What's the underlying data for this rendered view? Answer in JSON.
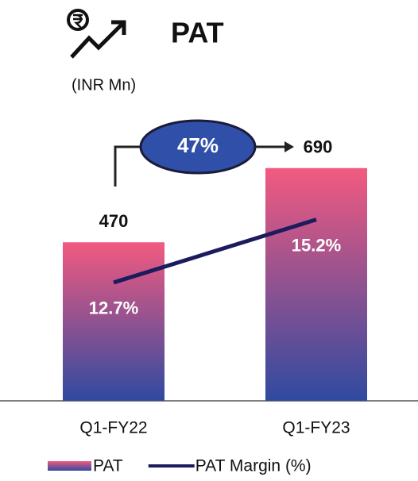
{
  "chart_data": {
    "type": "bar",
    "title": "PAT",
    "subtitle": "(INR Mn)",
    "growth_label": "47%",
    "categories": [
      "Q1-FY22",
      "Q1-FY23"
    ],
    "series": [
      {
        "name": "PAT",
        "type": "bar",
        "color": [
          "#f25a80",
          "#2f4aa0"
        ],
        "values": [
          470,
          690
        ]
      },
      {
        "name": "PAT Margin (%)",
        "type": "line",
        "axis": "y2",
        "color": "#1c1b5e",
        "values": [
          12.7,
          15.2
        ],
        "value_labels": [
          "12.7%",
          "15.2%"
        ]
      }
    ],
    "ylim": [
      0,
      1000
    ],
    "y2lim": [
      8,
      21.4
    ]
  }
}
